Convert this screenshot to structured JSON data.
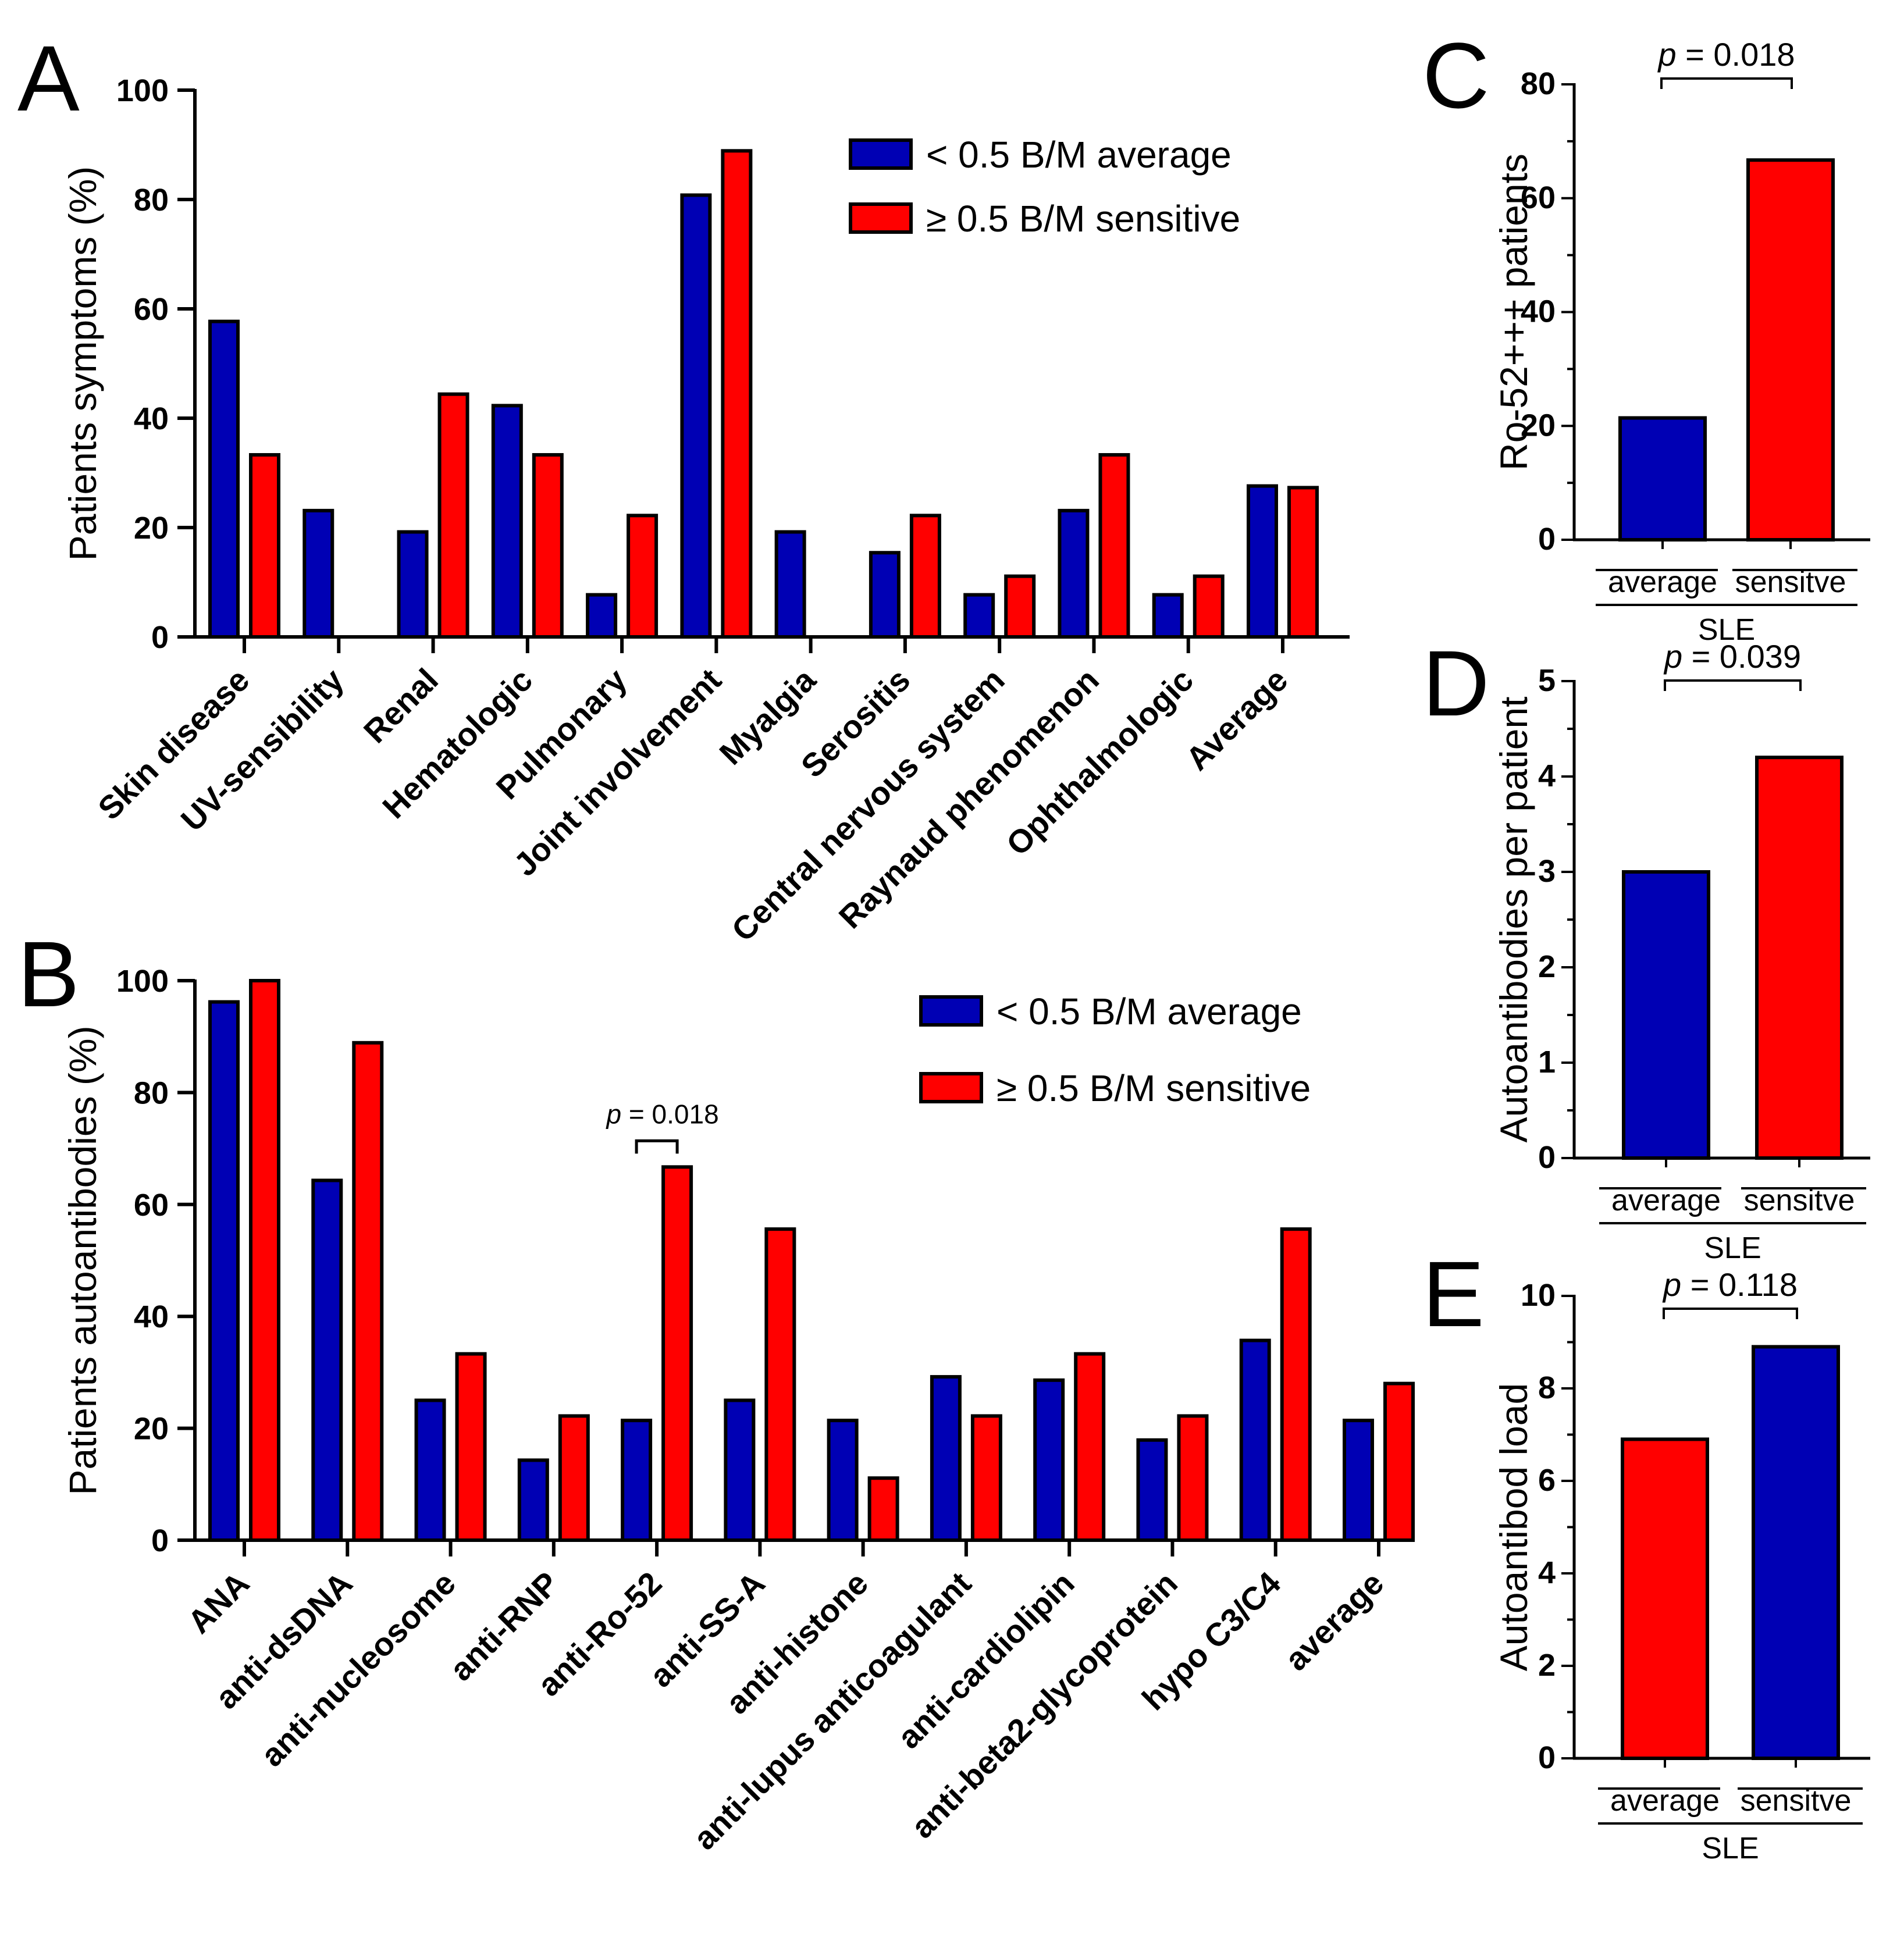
{
  "colors": {
    "blue": "#0000b4",
    "red": "#ff0000",
    "outline": "#000000"
  },
  "chart_data": [
    {
      "panel": "A",
      "type": "bar",
      "ylabel": "Patients symptoms (%)",
      "ylim": [
        0,
        100
      ],
      "yticks": [
        0,
        20,
        40,
        60,
        80,
        100
      ],
      "categories": [
        "Skin disease",
        "UV-sensibility",
        "Renal",
        "Hematologic",
        "Pulmonary",
        "Joint involvement",
        "Myalgia",
        "Serositis",
        "Central nervous system",
        "Raynaud phenomenon",
        "Ophthalmologic",
        "Average"
      ],
      "series": [
        {
          "name": "< 0.5 B/M average",
          "color": "blue",
          "values": [
            57.7,
            23.1,
            19.2,
            42.3,
            7.7,
            80.8,
            19.2,
            15.4,
            7.7,
            23.1,
            7.7,
            27.6
          ]
        },
        {
          "name": "≥ 0.5 B/M sensitive",
          "color": "red",
          "values": [
            33.3,
            0,
            44.4,
            33.3,
            22.2,
            88.9,
            0,
            22.2,
            11.1,
            33.3,
            11.1,
            27.3
          ]
        }
      ],
      "legend": [
        "< 0.5 B/M average",
        "≥ 0.5 B/M sensitive"
      ]
    },
    {
      "panel": "B",
      "type": "bar",
      "ylabel": "Patients autoantibodies (%)",
      "ylim": [
        0,
        100
      ],
      "yticks": [
        0,
        20,
        40,
        60,
        80,
        100
      ],
      "categories": [
        "ANA",
        "anti-dsDNA",
        "anti-nucleosome",
        "anti-RNP",
        "anti-Ro-52",
        "anti-SS-A",
        "anti-histone",
        "anti-lupus anticoagulant",
        "anti-cardiolipin",
        "anti-beta2-glycoprotein",
        "hypo C3/C4",
        "average"
      ],
      "series": [
        {
          "name": "< 0.5 B/M average",
          "color": "blue",
          "values": [
            96.2,
            64.3,
            25.0,
            14.3,
            21.4,
            25.0,
            21.4,
            29.2,
            28.6,
            17.9,
            35.7,
            21.4
          ]
        },
        {
          "name": "≥ 0.5 B/M sensitive",
          "color": "red",
          "values": [
            100,
            88.9,
            33.3,
            22.2,
            66.7,
            55.6,
            11.1,
            22.2,
            33.3,
            22.2,
            55.6,
            28.0
          ]
        }
      ],
      "legend": [
        "< 0.5 B/M average",
        "≥ 0.5 B/M sensitive"
      ],
      "annotation": {
        "category": "anti-Ro-52",
        "p_prefix": "p",
        "p_text": " = 0.018"
      }
    },
    {
      "panel": "C",
      "type": "bar",
      "ylabel": "Ro-52+++ patients",
      "ylim": [
        0,
        80
      ],
      "yticks": [
        0,
        20,
        40,
        60,
        80
      ],
      "categories": [
        "average",
        "sensitve"
      ],
      "group": "SLE",
      "values": [
        21.4,
        66.7
      ],
      "colors": [
        "blue",
        "red"
      ],
      "p_prefix": "p",
      "p_text": " = 0.018"
    },
    {
      "panel": "D",
      "type": "bar",
      "ylabel": "Autoantibodies per patient",
      "ylim": [
        0,
        5
      ],
      "yticks": [
        0,
        1,
        2,
        3,
        4,
        5
      ],
      "categories": [
        "average",
        "sensitve"
      ],
      "group": "SLE",
      "values": [
        3.0,
        4.2
      ],
      "colors": [
        "blue",
        "red"
      ],
      "p_prefix": "p",
      "p_text": " = 0.039"
    },
    {
      "panel": "E",
      "type": "bar",
      "ylabel": "Autoantibod load",
      "ylim": [
        0,
        10
      ],
      "yticks": [
        0,
        2,
        4,
        6,
        8,
        10
      ],
      "categories": [
        "average",
        "sensitve"
      ],
      "group": "SLE",
      "values": [
        6.9,
        8.9
      ],
      "colors": [
        "red",
        "blue"
      ],
      "p_prefix": "p",
      "p_text": " = 0.118"
    }
  ]
}
